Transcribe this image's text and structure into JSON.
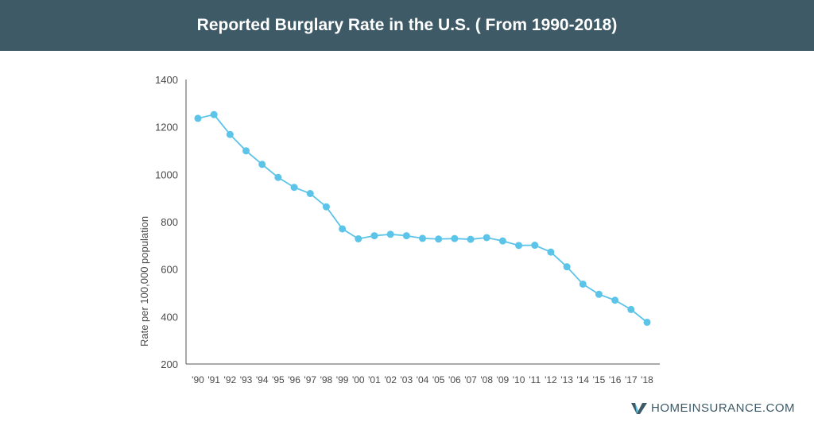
{
  "header": {
    "title": "Reported Burglary Rate in the U.S. ( From 1990-2018)"
  },
  "colors": {
    "header_bg": "#3d5a66",
    "line": "#5bc4e8",
    "axis": "#555555"
  },
  "chart_data": {
    "type": "line",
    "title": "Reported Burglary Rate in the U.S. ( From 1990-2018)",
    "ylabel": "Rate per 100,000 population",
    "xlabel": "",
    "ylim": [
      200,
      1400
    ],
    "yticks": [
      200,
      400,
      600,
      800,
      1000,
      1200,
      1400
    ],
    "grid": false,
    "categories": [
      "'90",
      "'91",
      "'92",
      "'93",
      "'94",
      "'95",
      "'96",
      "'97",
      "'98",
      "'99",
      "'00",
      "'01",
      "'02",
      "'03",
      "'04",
      "'05",
      "'06",
      "'07",
      "'08",
      "'09",
      "'10",
      "'11",
      "'12",
      "'13",
      "'14",
      "'15",
      "'16",
      "'17",
      "'18"
    ],
    "series": [
      {
        "values": [
          1236,
          1252,
          1168,
          1099,
          1042,
          987,
          945,
          919,
          863,
          770,
          728,
          741,
          747,
          741,
          730,
          727,
          729,
          726,
          733,
          719,
          700,
          701,
          672,
          610,
          537,
          494,
          469,
          430,
          376
        ]
      }
    ]
  },
  "logo": {
    "text": "HOMEINSURANCE.COM",
    "icon": "v-check-icon"
  }
}
